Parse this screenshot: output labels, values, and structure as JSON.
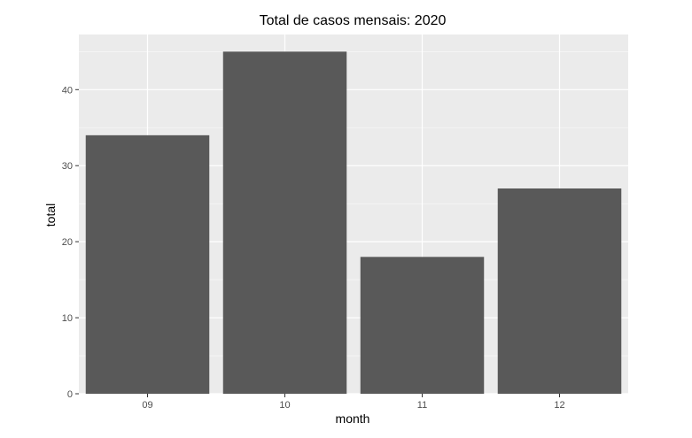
{
  "chart_data": {
    "type": "bar",
    "title": "Total de casos mensais: 2020",
    "xlabel": "month",
    "ylabel": "total",
    "categories": [
      "09",
      "10",
      "11",
      "12"
    ],
    "values": [
      34,
      45,
      18,
      27
    ],
    "ylim": [
      0,
      47.25
    ],
    "yticks": [
      0,
      10,
      20,
      30,
      40
    ],
    "grid": true,
    "legend": "none",
    "colors": {
      "bar": "#595959",
      "panel": "#ebebeb",
      "grid_major": "#ffffff",
      "tick_text": "#4d4d4d",
      "tick_mark": "#333333"
    }
  }
}
